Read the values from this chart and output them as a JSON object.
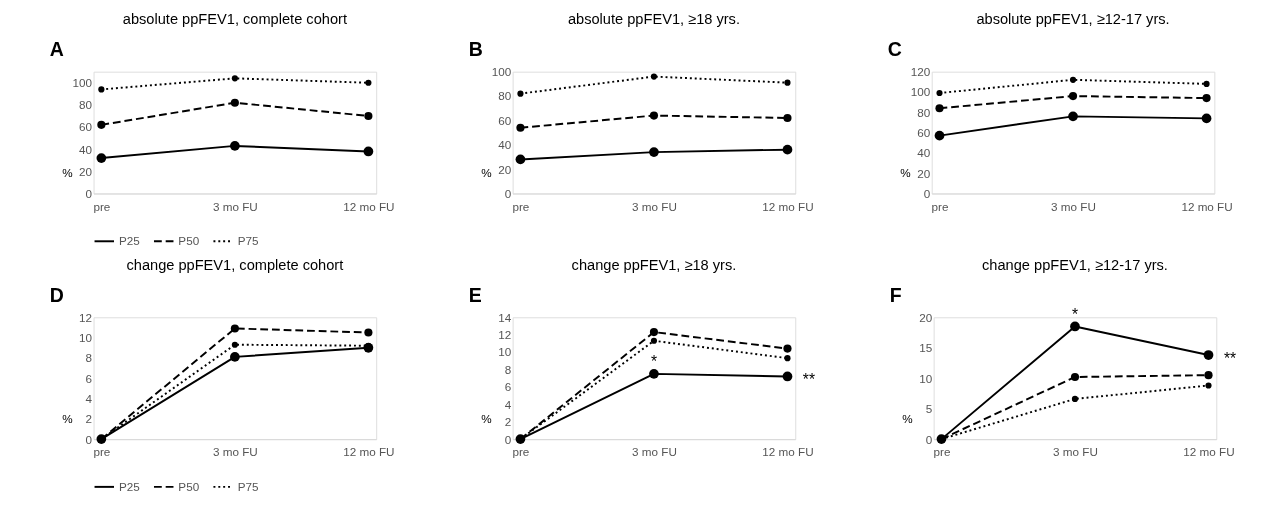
{
  "chart_data": [
    {
      "type": "line",
      "title": "absolute ppFEV1, complete cohort",
      "annotations": [
        "A"
      ],
      "ylabel": "%",
      "categories": [
        "pre",
        "3 mo FU",
        "12 mo FU"
      ],
      "ylim": [
        0,
        110
      ],
      "yticks": [
        0,
        20,
        40,
        60,
        80,
        100
      ],
      "grid": false,
      "legend": "bottom",
      "marker": "circle",
      "series": [
        {
          "name": "P25",
          "color": "#000000",
          "line_style": "solid",
          "values": [
            32,
            43,
            38
          ]
        },
        {
          "name": "P50",
          "color": "#000000",
          "line_style": "dashed",
          "values": [
            62,
            82,
            70
          ]
        },
        {
          "name": "P75",
          "color": "#000000",
          "line_style": "dotted",
          "values": [
            94,
            104,
            100
          ]
        }
      ]
    },
    {
      "type": "line",
      "title": "absolute ppFEV1, ≥18 yrs.",
      "annotations": [
        "B"
      ],
      "ylabel": "%",
      "categories": [
        "pre",
        "3 mo FU",
        "12 mo FU"
      ],
      "ylim": [
        0,
        100
      ],
      "yticks": [
        0,
        20,
        40,
        60,
        80,
        100
      ],
      "grid": false,
      "legend": "bottom",
      "marker": "circle",
      "series": [
        {
          "name": "P25",
          "color": "#000000",
          "line_style": "solid",
          "values": [
            28,
            34,
            36
          ]
        },
        {
          "name": "P50",
          "color": "#000000",
          "line_style": "dashed",
          "values": [
            54,
            64,
            62
          ]
        },
        {
          "name": "P75",
          "color": "#000000",
          "line_style": "dotted",
          "values": [
            82,
            96,
            91
          ]
        }
      ]
    },
    {
      "type": "line",
      "title": "absolute ppFEV1, ≥12-17 yrs.",
      "annotations": [
        "C"
      ],
      "ylabel": "%",
      "categories": [
        "pre",
        "3 mo FU",
        "12 mo FU"
      ],
      "ylim": [
        0,
        120
      ],
      "yticks": [
        0,
        20,
        40,
        60,
        80,
        100,
        120
      ],
      "grid": false,
      "legend": "bottom",
      "marker": "circle",
      "series": [
        {
          "name": "P25",
          "color": "#000000",
          "line_style": "solid",
          "values": [
            57,
            76,
            74
          ]
        },
        {
          "name": "P50",
          "color": "#000000",
          "line_style": "dashed",
          "values": [
            84,
            96,
            94
          ]
        },
        {
          "name": "P75",
          "color": "#000000",
          "line_style": "dotted",
          "values": [
            99,
            112,
            108
          ]
        }
      ]
    },
    {
      "type": "line",
      "title": "change ppFEV1, complete cohort",
      "annotations": [
        "D"
      ],
      "ylabel": "%",
      "categories": [
        "pre",
        "3 mo FU",
        "12 mo FU"
      ],
      "ylim": [
        0,
        12
      ],
      "yticks": [
        0,
        2,
        4,
        6,
        8,
        10,
        12
      ],
      "grid": false,
      "legend": "bottom",
      "marker": "circle",
      "series": [
        {
          "name": "P25",
          "color": "#000000",
          "line_style": "solid",
          "values": [
            0,
            8.1,
            9.0
          ]
        },
        {
          "name": "P50",
          "color": "#000000",
          "line_style": "dashed",
          "values": [
            0,
            10.9,
            10.5
          ]
        },
        {
          "name": "P75",
          "color": "#000000",
          "line_style": "dotted",
          "values": [
            0,
            9.3,
            9.2
          ]
        }
      ]
    },
    {
      "type": "line",
      "title": "change ppFEV1, ≥18 yrs.",
      "annotations": [
        "E",
        {
          "text": "*",
          "x": "3 mo FU",
          "y": 7.5
        },
        {
          "text": "**",
          "x": "12 mo FU",
          "y": 7.2
        }
      ],
      "ylabel": "%",
      "categories": [
        "pre",
        "3 mo FU",
        "12 mo FU"
      ],
      "ylim": [
        0,
        14
      ],
      "yticks": [
        0,
        2,
        4,
        6,
        8,
        10,
        12,
        14
      ],
      "grid": false,
      "legend": "bottom",
      "marker": "circle",
      "series": [
        {
          "name": "P25",
          "color": "#000000",
          "line_style": "solid",
          "values": [
            0,
            7.5,
            7.2
          ]
        },
        {
          "name": "P50",
          "color": "#000000",
          "line_style": "dashed",
          "values": [
            0,
            12.3,
            10.4
          ]
        },
        {
          "name": "P75",
          "color": "#000000",
          "line_style": "dotted",
          "values": [
            0,
            11.3,
            9.3
          ]
        }
      ]
    },
    {
      "type": "line",
      "title": "change ppFEV1, ≥12-17 yrs.",
      "annotations": [
        "F",
        {
          "text": "*",
          "x": "3 mo FU",
          "y": 18.5
        },
        {
          "text": "**",
          "x": "12 mo FU",
          "y": 13.8
        }
      ],
      "ylabel": "%",
      "categories": [
        "pre",
        "3 mo FU",
        "12 mo FU"
      ],
      "ylim": [
        0,
        20
      ],
      "yticks": [
        0,
        5,
        10,
        15,
        20
      ],
      "grid": false,
      "legend": "bottom",
      "marker": "circle",
      "series": [
        {
          "name": "P25",
          "color": "#000000",
          "line_style": "solid",
          "values": [
            0,
            18.5,
            13.8
          ]
        },
        {
          "name": "P50",
          "color": "#000000",
          "line_style": "dashed",
          "values": [
            0,
            10.2,
            10.5
          ]
        },
        {
          "name": "P75",
          "color": "#000000",
          "line_style": "dotted",
          "values": [
            0,
            6.6,
            8.8
          ]
        }
      ]
    }
  ]
}
